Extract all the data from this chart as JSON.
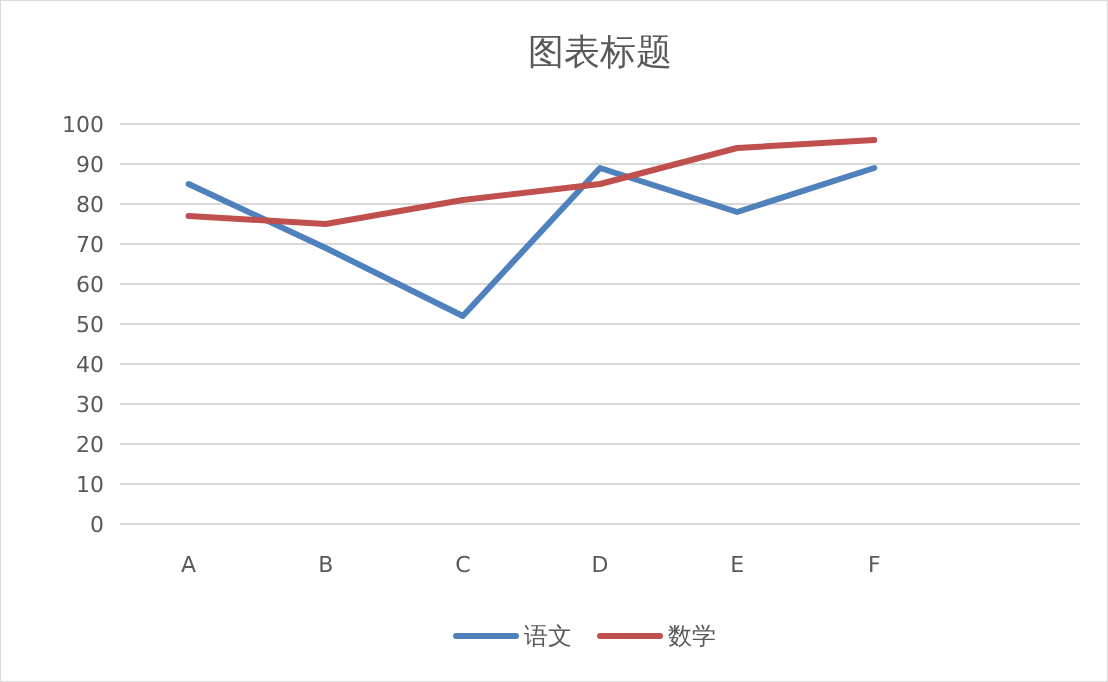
{
  "chart_data": {
    "type": "line",
    "title": "图表标题",
    "categories": [
      "A",
      "B",
      "C",
      "D",
      "E",
      "F",
      null
    ],
    "series": [
      {
        "name": "语文",
        "color": "#4f81bd",
        "values": [
          85,
          69,
          52,
          89,
          78,
          89,
          null
        ]
      },
      {
        "name": "数学",
        "color": "#c0504d",
        "values": [
          77,
          75,
          81,
          85,
          94,
          96,
          null
        ]
      }
    ],
    "ylim": [
      0,
      100
    ],
    "yticks": [
      0,
      10,
      20,
      30,
      40,
      50,
      60,
      70,
      80,
      90,
      100
    ],
    "grid": "y",
    "legend": "bottom",
    "line_style": "solid",
    "marker": "none"
  }
}
